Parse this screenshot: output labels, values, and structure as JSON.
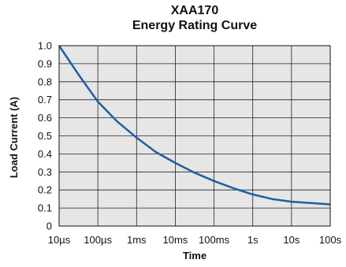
{
  "chart_data": {
    "type": "line",
    "title": "XAA170",
    "subtitle": "Energy Rating Curve",
    "xlabel": "Time",
    "ylabel": "Load Current (A)",
    "x_scale": "log",
    "x_ticks": [
      "10µs",
      "100µs",
      "1ms",
      "10ms",
      "100ms",
      "1s",
      "10s",
      "100s"
    ],
    "y_ticks": [
      "0",
      "0.1",
      "0.2",
      "0.3",
      "0.4",
      "0.5",
      "0.6",
      "0.7",
      "0.8",
      "0.9",
      "1.0"
    ],
    "ylim": [
      0,
      1.0
    ],
    "grid": true,
    "background_color": "#e6e6e6",
    "series": [
      {
        "color": "#1f5f9e",
        "x": [
          "10µs",
          "31.6µs",
          "100µs",
          "316µs",
          "1ms",
          "3.16ms",
          "10ms",
          "31.6ms",
          "100ms",
          "316ms",
          "1s",
          "3.16s",
          "10s",
          "31.6s",
          "100s"
        ],
        "y": [
          1.0,
          0.84,
          0.69,
          0.58,
          0.49,
          0.41,
          0.35,
          0.295,
          0.25,
          0.21,
          0.175,
          0.15,
          0.135,
          0.128,
          0.12
        ]
      }
    ]
  }
}
